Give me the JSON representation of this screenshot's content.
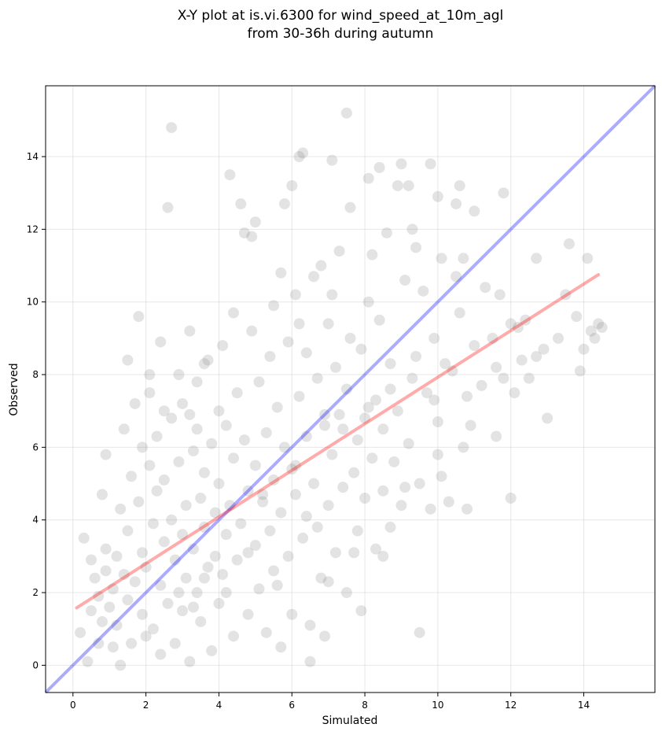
{
  "chart_data": {
    "type": "scatter",
    "title_lines": [
      "X-Y plot at is.vi.6300 for wind_speed_at_10m_agl",
      "from 30-36h during autumn"
    ],
    "xlabel": "Simulated",
    "ylabel": "Observed",
    "xlim": [
      -0.75,
      15.95
    ],
    "ylim": [
      -0.75,
      15.95
    ],
    "xticks": [
      0,
      2,
      4,
      6,
      8,
      10,
      12,
      14
    ],
    "yticks": [
      0,
      2,
      4,
      6,
      8,
      10,
      12,
      14
    ],
    "grid": true,
    "legend": "none",
    "point_color": "#808080",
    "identity_line": {
      "color": "#0000ff",
      "points": [
        [
          -0.75,
          -0.75
        ],
        [
          15.95,
          15.95
        ]
      ]
    },
    "fit_line": {
      "color": "#ff0000",
      "points": [
        [
          0.1,
          1.58
        ],
        [
          14.4,
          10.75
        ]
      ]
    },
    "points": [
      [
        0.3,
        3.5
      ],
      [
        0.5,
        2.9
      ],
      [
        0.6,
        2.4
      ],
      [
        0.7,
        1.9
      ],
      [
        0.8,
        1.2
      ],
      [
        0.9,
        2.6
      ],
      [
        0.5,
        1.5
      ],
      [
        0.2,
        0.9
      ],
      [
        0.4,
        0.1
      ],
      [
        0.7,
        0.6
      ],
      [
        0.9,
        3.2
      ],
      [
        0.8,
        4.7
      ],
      [
        0.9,
        5.8
      ],
      [
        1.0,
        1.6
      ],
      [
        1.1,
        0.5
      ],
      [
        1.1,
        2.1
      ],
      [
        1.2,
        3.0
      ],
      [
        1.3,
        0.0
      ],
      [
        1.2,
        1.1
      ],
      [
        1.3,
        4.3
      ],
      [
        1.4,
        6.5
      ],
      [
        1.4,
        2.5
      ],
      [
        1.5,
        1.8
      ],
      [
        1.5,
        3.7
      ],
      [
        1.6,
        0.6
      ],
      [
        1.6,
        5.2
      ],
      [
        1.7,
        2.3
      ],
      [
        1.7,
        7.2
      ],
      [
        1.5,
        8.4
      ],
      [
        1.8,
        9.6
      ],
      [
        1.9,
        1.4
      ],
      [
        1.9,
        3.1
      ],
      [
        1.8,
        4.5
      ],
      [
        1.9,
        6.0
      ],
      [
        2.0,
        0.8
      ],
      [
        2.0,
        2.7
      ],
      [
        2.1,
        5.5
      ],
      [
        2.1,
        7.5
      ],
      [
        2.2,
        3.9
      ],
      [
        2.2,
        1.0
      ],
      [
        2.3,
        4.8
      ],
      [
        2.3,
        6.3
      ],
      [
        2.4,
        2.2
      ],
      [
        2.4,
        0.3
      ],
      [
        2.4,
        8.9
      ],
      [
        2.5,
        3.4
      ],
      [
        2.5,
        5.1
      ],
      [
        2.6,
        12.6
      ],
      [
        2.6,
        1.7
      ],
      [
        2.7,
        14.8
      ],
      [
        2.7,
        4.0
      ],
      [
        2.7,
        6.8
      ],
      [
        2.8,
        2.9
      ],
      [
        2.8,
        0.6
      ],
      [
        2.9,
        5.6
      ],
      [
        2.9,
        8.0
      ],
      [
        3.0,
        3.6
      ],
      [
        3.0,
        1.5
      ],
      [
        3.0,
        7.2
      ],
      [
        3.1,
        4.4
      ],
      [
        3.1,
        2.4
      ],
      [
        3.2,
        9.2
      ],
      [
        3.2,
        0.1
      ],
      [
        3.3,
        5.9
      ],
      [
        3.3,
        3.2
      ],
      [
        3.4,
        6.5
      ],
      [
        3.4,
        2.0
      ],
      [
        3.4,
        7.8
      ],
      [
        3.5,
        4.6
      ],
      [
        3.5,
        1.2
      ],
      [
        3.6,
        3.8
      ],
      [
        3.6,
        5.3
      ],
      [
        3.7,
        8.4
      ],
      [
        3.7,
        2.7
      ],
      [
        3.8,
        0.4
      ],
      [
        3.8,
        6.1
      ],
      [
        3.9,
        4.2
      ],
      [
        3.9,
        3.0
      ],
      [
        4.0,
        7.0
      ],
      [
        4.0,
        1.7
      ],
      [
        4.0,
        5.0
      ],
      [
        4.1,
        8.8
      ],
      [
        4.1,
        2.5
      ],
      [
        4.2,
        3.6
      ],
      [
        4.2,
        6.6
      ],
      [
        4.3,
        13.5
      ],
      [
        4.3,
        4.4
      ],
      [
        4.4,
        0.8
      ],
      [
        4.4,
        5.7
      ],
      [
        4.5,
        2.9
      ],
      [
        4.5,
        7.5
      ],
      [
        4.6,
        12.7
      ],
      [
        4.6,
        3.9
      ],
      [
        4.7,
        11.9
      ],
      [
        4.7,
        6.2
      ],
      [
        4.8,
        1.4
      ],
      [
        4.8,
        4.8
      ],
      [
        4.9,
        11.8
      ],
      [
        4.9,
        9.2
      ],
      [
        5.0,
        3.3
      ],
      [
        5.0,
        5.5
      ],
      [
        5.0,
        12.2
      ],
      [
        5.1,
        2.1
      ],
      [
        5.1,
        7.8
      ],
      [
        5.2,
        4.5
      ],
      [
        5.3,
        0.9
      ],
      [
        5.3,
        6.4
      ],
      [
        5.4,
        3.7
      ],
      [
        5.4,
        8.5
      ],
      [
        5.5,
        5.1
      ],
      [
        5.5,
        2.6
      ],
      [
        5.6,
        7.1
      ],
      [
        5.7,
        4.2
      ],
      [
        5.7,
        0.5
      ],
      [
        5.8,
        6.0
      ],
      [
        5.8,
        12.7
      ],
      [
        5.9,
        3.0
      ],
      [
        5.9,
        8.9
      ],
      [
        6.0,
        5.4
      ],
      [
        6.0,
        1.4
      ],
      [
        6.1,
        10.2
      ],
      [
        6.1,
        4.7
      ],
      [
        6.2,
        14.0
      ],
      [
        6.2,
        7.4
      ],
      [
        6.3,
        14.1
      ],
      [
        6.3,
        3.5
      ],
      [
        6.4,
        6.3
      ],
      [
        6.4,
        8.6
      ],
      [
        6.5,
        1.1
      ],
      [
        6.5,
        0.1
      ],
      [
        6.6,
        5.0
      ],
      [
        6.6,
        10.7
      ],
      [
        6.7,
        3.8
      ],
      [
        6.7,
        7.9
      ],
      [
        6.8,
        2.4
      ],
      [
        6.8,
        11.0
      ],
      [
        6.9,
        6.6
      ],
      [
        6.9,
        0.8
      ],
      [
        7.0,
        4.4
      ],
      [
        7.0,
        9.4
      ],
      [
        7.1,
        13.9
      ],
      [
        7.1,
        5.8
      ],
      [
        7.2,
        3.1
      ],
      [
        7.2,
        8.2
      ],
      [
        7.3,
        11.4
      ],
      [
        7.3,
        6.9
      ],
      [
        7.4,
        4.9
      ],
      [
        7.5,
        15.2
      ],
      [
        7.5,
        2.0
      ],
      [
        7.5,
        7.6
      ],
      [
        7.6,
        12.6
      ],
      [
        7.6,
        9.0
      ],
      [
        7.7,
        5.3
      ],
      [
        7.8,
        3.7
      ],
      [
        7.8,
        6.2
      ],
      [
        7.9,
        1.5
      ],
      [
        7.9,
        8.7
      ],
      [
        8.0,
        4.6
      ],
      [
        8.0,
        6.8
      ],
      [
        8.1,
        13.4
      ],
      [
        8.1,
        10.0
      ],
      [
        8.2,
        5.7
      ],
      [
        8.3,
        3.2
      ],
      [
        8.3,
        7.3
      ],
      [
        8.4,
        13.7
      ],
      [
        8.4,
        9.5
      ],
      [
        8.5,
        4.8
      ],
      [
        8.5,
        6.5
      ],
      [
        8.6,
        11.9
      ],
      [
        8.7,
        3.8
      ],
      [
        8.7,
        8.3
      ],
      [
        8.8,
        5.6
      ],
      [
        8.9,
        13.2
      ],
      [
        8.9,
        7.0
      ],
      [
        9.0,
        13.8
      ],
      [
        9.0,
        4.4
      ],
      [
        9.1,
        10.6
      ],
      [
        9.2,
        13.2
      ],
      [
        9.2,
        6.1
      ],
      [
        9.3,
        12.0
      ],
      [
        9.4,
        8.5
      ],
      [
        9.5,
        5.0
      ],
      [
        9.5,
        0.9
      ],
      [
        9.6,
        10.3
      ],
      [
        9.7,
        7.5
      ],
      [
        9.8,
        13.8
      ],
      [
        9.8,
        4.3
      ],
      [
        9.9,
        9.0
      ],
      [
        10.0,
        12.9
      ],
      [
        10.0,
        6.7
      ],
      [
        10.1,
        11.2
      ],
      [
        10.1,
        5.2
      ],
      [
        10.2,
        8.3
      ],
      [
        10.3,
        4.5
      ],
      [
        10.5,
        12.7
      ],
      [
        10.6,
        13.2
      ],
      [
        10.6,
        9.7
      ],
      [
        10.7,
        11.2
      ],
      [
        10.7,
        6.0
      ],
      [
        10.8,
        7.4
      ],
      [
        10.8,
        4.3
      ],
      [
        11.0,
        8.8
      ],
      [
        11.2,
        7.7
      ],
      [
        11.3,
        10.4
      ],
      [
        11.5,
        9.0
      ],
      [
        11.6,
        6.3
      ],
      [
        11.7,
        10.2
      ],
      [
        11.8,
        7.9
      ],
      [
        11.8,
        13.0
      ],
      [
        12.0,
        9.4
      ],
      [
        12.0,
        4.6
      ],
      [
        12.1,
        7.5
      ],
      [
        12.2,
        9.3
      ],
      [
        12.3,
        8.4
      ],
      [
        12.4,
        9.5
      ],
      [
        12.7,
        11.2
      ],
      [
        12.7,
        8.5
      ],
      [
        12.9,
        8.7
      ],
      [
        13.0,
        6.8
      ],
      [
        13.3,
        9.0
      ],
      [
        13.5,
        10.2
      ],
      [
        13.6,
        11.6
      ],
      [
        13.8,
        9.6
      ],
      [
        13.9,
        8.1
      ],
      [
        14.0,
        8.7
      ],
      [
        14.1,
        11.2
      ],
      [
        14.2,
        9.2
      ],
      [
        14.4,
        9.4
      ],
      [
        14.5,
        9.3
      ],
      [
        14.3,
        9.0
      ],
      [
        6.0,
        13.2
      ],
      [
        5.6,
        2.2
      ],
      [
        6.4,
        4.1
      ],
      [
        3.6,
        2.4
      ],
      [
        4.8,
        3.1
      ],
      [
        4.2,
        2.0
      ],
      [
        3.3,
        1.6
      ],
      [
        2.9,
        2.0
      ],
      [
        5.2,
        4.7
      ],
      [
        6.1,
        5.5
      ],
      [
        6.9,
        6.9
      ],
      [
        7.4,
        6.5
      ],
      [
        8.1,
        7.1
      ],
      [
        8.7,
        7.6
      ],
      [
        9.3,
        7.9
      ],
      [
        9.9,
        7.3
      ],
      [
        10.4,
        8.1
      ],
      [
        7.0,
        2.3
      ],
      [
        7.7,
        3.1
      ],
      [
        8.5,
        3.0
      ],
      [
        9.1,
        4.9
      ],
      [
        10.0,
        5.8
      ],
      [
        10.9,
        6.6
      ],
      [
        11.6,
        8.2
      ],
      [
        12.5,
        7.9
      ],
      [
        3.2,
        6.9
      ],
      [
        2.5,
        7.0
      ],
      [
        2.1,
        8.0
      ],
      [
        3.6,
        8.3
      ],
      [
        4.4,
        9.7
      ],
      [
        5.5,
        9.9
      ],
      [
        6.2,
        9.4
      ],
      [
        5.7,
        10.8
      ],
      [
        7.1,
        10.2
      ],
      [
        8.2,
        11.3
      ],
      [
        9.4,
        11.5
      ],
      [
        10.5,
        10.7
      ],
      [
        11.0,
        12.5
      ]
    ]
  }
}
